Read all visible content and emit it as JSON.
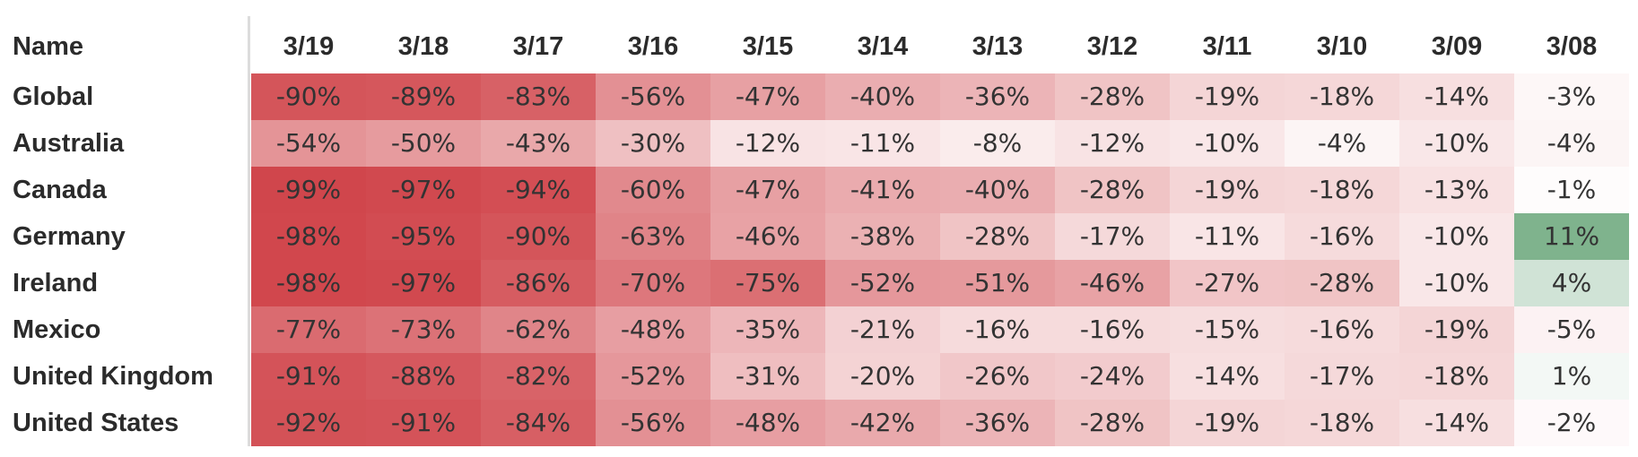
{
  "header": {
    "name_label": "Name"
  },
  "colors": {
    "negative_max": "#d0444a",
    "neutral": "#ffffff",
    "positive_max": "#7fb38d"
  },
  "chart_data": {
    "type": "heatmap",
    "columns": [
      "3/19",
      "3/18",
      "3/17",
      "3/16",
      "3/15",
      "3/14",
      "3/13",
      "3/12",
      "3/11",
      "3/10",
      "3/09",
      "3/08"
    ],
    "rows": [
      {
        "name": "Global",
        "values": [
          -90,
          -89,
          -83,
          -56,
          -47,
          -40,
          -36,
          -28,
          -19,
          -18,
          -14,
          -3
        ]
      },
      {
        "name": "Australia",
        "values": [
          -54,
          -50,
          -43,
          -30,
          -12,
          -11,
          -8,
          -12,
          -10,
          -4,
          -10,
          -4
        ]
      },
      {
        "name": "Canada",
        "values": [
          -99,
          -97,
          -94,
          -60,
          -47,
          -41,
          -40,
          -28,
          -19,
          -18,
          -13,
          -1
        ]
      },
      {
        "name": "Germany",
        "values": [
          -98,
          -95,
          -90,
          -63,
          -46,
          -38,
          -28,
          -17,
          -11,
          -16,
          -10,
          11
        ]
      },
      {
        "name": "Ireland",
        "values": [
          -98,
          -97,
          -86,
          -70,
          -75,
          -52,
          -51,
          -46,
          -27,
          -28,
          -10,
          4
        ]
      },
      {
        "name": "Mexico",
        "values": [
          -77,
          -73,
          -62,
          -48,
          -35,
          -21,
          -16,
          -16,
          -15,
          -16,
          -19,
          -5
        ]
      },
      {
        "name": "United Kingdom",
        "values": [
          -91,
          -88,
          -82,
          -52,
          -31,
          -20,
          -26,
          -24,
          -14,
          -17,
          -18,
          1
        ]
      },
      {
        "name": "United States",
        "values": [
          -92,
          -91,
          -84,
          -56,
          -48,
          -42,
          -36,
          -28,
          -19,
          -18,
          -14,
          -2
        ]
      }
    ],
    "cell_labels": [
      [
        "-90%",
        "-89%",
        "-83%",
        "-56%",
        "-47%",
        "-40%",
        "-36%",
        "-28%",
        "-19%",
        "-18%",
        "-14%",
        "-3%"
      ],
      [
        "-54%",
        "-50%",
        "-43%",
        "-30%",
        "-12%",
        "-11%",
        "-8%",
        "-12%",
        "-10%",
        "-4%",
        "-10%",
        "-4%"
      ],
      [
        "-99%",
        "-97%",
        "-94%",
        "-60%",
        "-47%",
        "-41%",
        "-40%",
        "-28%",
        "-19%",
        "-18%",
        "-13%",
        "-1%"
      ],
      [
        "-98%",
        "-95%",
        "-90%",
        "-63%",
        "-46%",
        "-38%",
        "-28%",
        "-17%",
        "-11%",
        "-16%",
        "-10%",
        "11%"
      ],
      [
        "-98%",
        "-97%",
        "-86%",
        "-70%",
        "-75%",
        "-52%",
        "-51%",
        "-46%",
        "-27%",
        "-28%",
        "-10%",
        "4%"
      ],
      [
        "-77%",
        "-73%",
        "-62%",
        "-48%",
        "-35%",
        "-21%",
        "-16%",
        "-16%",
        "-15%",
        "-16%",
        "-19%",
        "-5%"
      ],
      [
        "-91%",
        "-88%",
        "-82%",
        "-52%",
        "-31%",
        "-20%",
        "-26%",
        "-24%",
        "-14%",
        "-17%",
        "-18%",
        "1%"
      ],
      [
        "-92%",
        "-91%",
        "-84%",
        "-56%",
        "-48%",
        "-42%",
        "-36%",
        "-28%",
        "-19%",
        "-18%",
        "-14%",
        "-2%"
      ]
    ],
    "grid": false,
    "legend": "none"
  }
}
